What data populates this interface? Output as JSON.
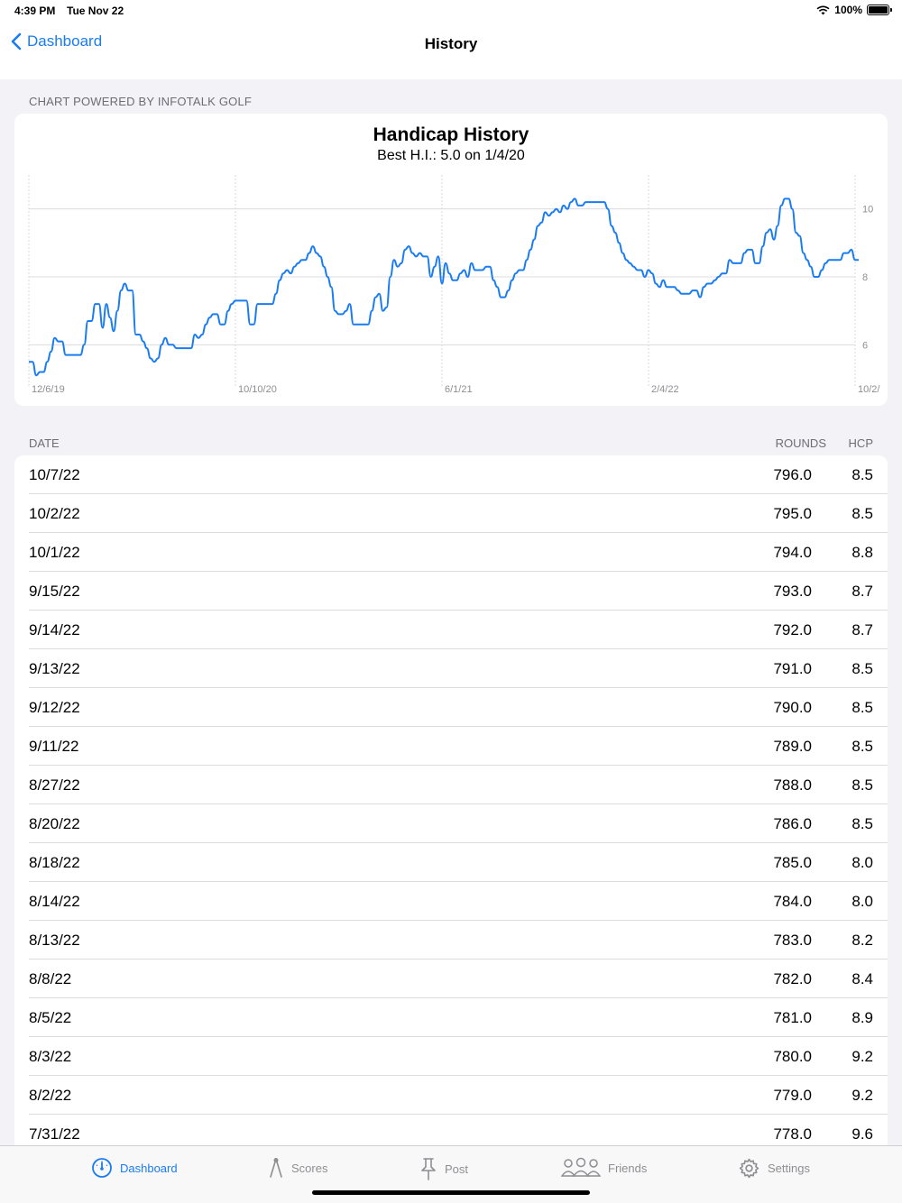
{
  "status": {
    "time": "4:39 PM",
    "date": "Tue Nov 22",
    "battery": "100%",
    "battery_level": 1.0
  },
  "nav": {
    "back_label": "Dashboard",
    "title": "History"
  },
  "chart_caption": "CHART POWERED BY INFOTALK GOLF",
  "chart_data": {
    "type": "line",
    "title": "Handicap History",
    "subtitle": "Best H.I.: 5.0 on 1/4/20",
    "x_ticks": [
      "12/6/19",
      "10/10/20",
      "6/1/21",
      "2/4/22",
      "10/2/"
    ],
    "y_ticks": [
      6,
      8,
      10
    ],
    "ylim": [
      5.0,
      11.0
    ],
    "grid": true,
    "color": "#1a7cf2",
    "series": [
      {
        "values": [
          5.5,
          5.5,
          5.1,
          5.2,
          5.2,
          5.5,
          5.8,
          6.2,
          6.1,
          6.1,
          5.7,
          5.7,
          5.7,
          5.7,
          5.7,
          6.0,
          6.7,
          6.7,
          7.2,
          7.2,
          6.5,
          7.2,
          6.8,
          6.4,
          7.0,
          7.6,
          7.8,
          7.6,
          7.6,
          6.3,
          6.3,
          6.1,
          5.9,
          5.6,
          5.5,
          5.6,
          6.0,
          6.2,
          6.0,
          6.0,
          5.9,
          5.9,
          5.9,
          5.9,
          5.9,
          6.3,
          6.2,
          6.3,
          6.6,
          6.8,
          6.9,
          6.9,
          6.6,
          6.6,
          7.0,
          7.2,
          7.3,
          7.3,
          7.3,
          7.3,
          6.6,
          6.6,
          7.2,
          7.2,
          7.2,
          7.2,
          7.2,
          7.5,
          7.9,
          8.1,
          8.2,
          8.1,
          8.3,
          8.4,
          8.5,
          8.5,
          8.7,
          8.9,
          8.7,
          8.6,
          8.3,
          8.0,
          7.7,
          7.0,
          6.9,
          6.9,
          7.0,
          7.2,
          6.6,
          6.6,
          6.6,
          6.6,
          6.6,
          7.0,
          7.4,
          7.5,
          7.0,
          7.1,
          8.0,
          8.5,
          8.3,
          8.4,
          8.8,
          8.9,
          8.7,
          8.6,
          8.7,
          8.6,
          8.6,
          8.0,
          8.3,
          8.6,
          7.8,
          8.4,
          8.1,
          7.9,
          7.9,
          8.1,
          8.2,
          8.0,
          8.4,
          8.2,
          8.2,
          8.2,
          8.3,
          8.3,
          7.9,
          7.7,
          7.4,
          7.4,
          7.6,
          7.9,
          8.1,
          8.2,
          8.2,
          8.5,
          8.8,
          9.1,
          9.5,
          9.6,
          9.9,
          9.8,
          9.9,
          10.0,
          9.9,
          10.1,
          10.0,
          10.2,
          10.3,
          10.1,
          10.1,
          10.2,
          10.2,
          10.2,
          10.2,
          10.2,
          10.2,
          10.0,
          9.5,
          9.3,
          9.0,
          8.7,
          8.5,
          8.4,
          8.3,
          8.2,
          8.2,
          8.0,
          8.2,
          8.1,
          7.8,
          7.7,
          7.9,
          7.7,
          7.7,
          7.7,
          7.6,
          7.5,
          7.5,
          7.5,
          7.6,
          7.6,
          7.4,
          7.7,
          7.8,
          7.8,
          7.9,
          8.0,
          8.1,
          8.1,
          8.5,
          8.4,
          8.4,
          8.4,
          8.7,
          8.8,
          8.8,
          8.4,
          8.4,
          8.9,
          9.3,
          9.4,
          9.1,
          9.5,
          10.1,
          10.3,
          10.3,
          10.0,
          9.3,
          9.2,
          8.7,
          8.5,
          8.3,
          8.0,
          8.0,
          8.2,
          8.4,
          8.5,
          8.5,
          8.5,
          8.5,
          8.7,
          8.7,
          8.8,
          8.5,
          8.5
        ]
      }
    ]
  },
  "table": {
    "headers": {
      "date": "DATE",
      "rounds": "ROUNDS",
      "hcp": "HCP"
    },
    "rows": [
      {
        "date": "10/7/22",
        "rounds": "796.0",
        "hcp": "8.5"
      },
      {
        "date": "10/2/22",
        "rounds": "795.0",
        "hcp": "8.5"
      },
      {
        "date": "10/1/22",
        "rounds": "794.0",
        "hcp": "8.8"
      },
      {
        "date": "9/15/22",
        "rounds": "793.0",
        "hcp": "8.7"
      },
      {
        "date": "9/14/22",
        "rounds": "792.0",
        "hcp": "8.7"
      },
      {
        "date": "9/13/22",
        "rounds": "791.0",
        "hcp": "8.5"
      },
      {
        "date": "9/12/22",
        "rounds": "790.0",
        "hcp": "8.5"
      },
      {
        "date": "9/11/22",
        "rounds": "789.0",
        "hcp": "8.5"
      },
      {
        "date": "8/27/22",
        "rounds": "788.0",
        "hcp": "8.5"
      },
      {
        "date": "8/20/22",
        "rounds": "786.0",
        "hcp": "8.5"
      },
      {
        "date": "8/18/22",
        "rounds": "785.0",
        "hcp": "8.0"
      },
      {
        "date": "8/14/22",
        "rounds": "784.0",
        "hcp": "8.0"
      },
      {
        "date": "8/13/22",
        "rounds": "783.0",
        "hcp": "8.2"
      },
      {
        "date": "8/8/22",
        "rounds": "782.0",
        "hcp": "8.4"
      },
      {
        "date": "8/5/22",
        "rounds": "781.0",
        "hcp": "8.9"
      },
      {
        "date": "8/3/22",
        "rounds": "780.0",
        "hcp": "9.2"
      },
      {
        "date": "8/2/22",
        "rounds": "779.0",
        "hcp": "9.2"
      },
      {
        "date": "7/31/22",
        "rounds": "778.0",
        "hcp": "9.6"
      }
    ]
  },
  "tabs": [
    {
      "label": "Dashboard",
      "icon": "dashboard-gauge-icon",
      "active": true
    },
    {
      "label": "Scores",
      "icon": "scores-compass-icon",
      "active": false
    },
    {
      "label": "Post",
      "icon": "post-pin-icon",
      "active": false
    },
    {
      "label": "Friends",
      "icon": "friends-people-icon",
      "active": false
    },
    {
      "label": "Settings",
      "icon": "settings-gear-icon",
      "active": false
    }
  ]
}
